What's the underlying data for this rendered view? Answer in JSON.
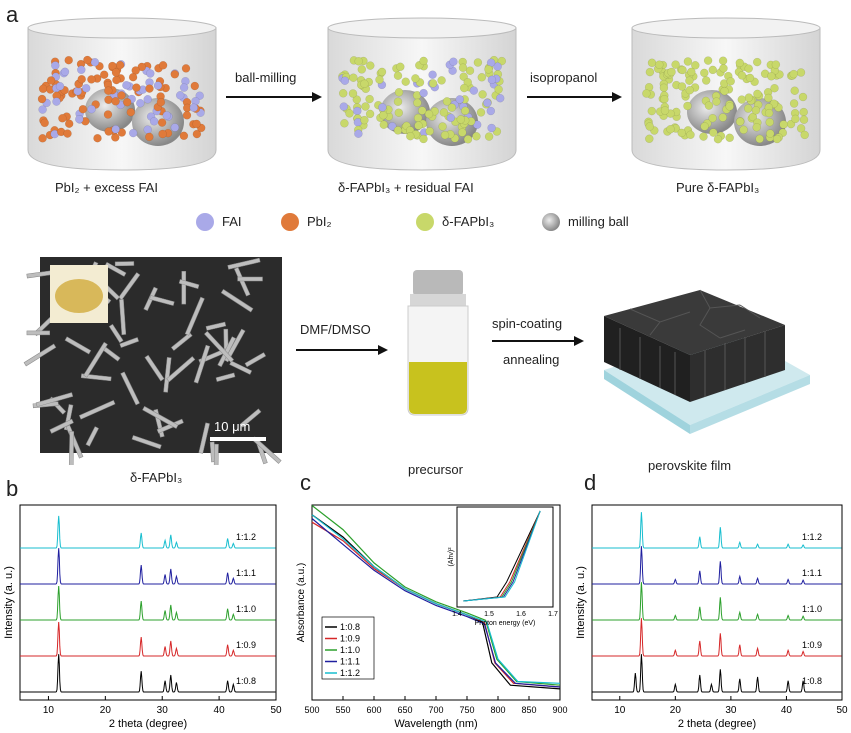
{
  "panel_labels": {
    "a": "a",
    "b": "b",
    "c": "c",
    "d": "d"
  },
  "top_row": {
    "jar1_caption": "PbI₂ + excess FAI",
    "arrow1_label": "ball-milling",
    "jar2_caption": "δ-FAPbI₃ + residual FAI",
    "arrow2_label": "isopropanol",
    "jar3_caption": "Pure δ-FAPbI₃"
  },
  "legend": {
    "fai": "FAI",
    "fai_color": "#a9a9e8",
    "pbi2": "PbI₂",
    "pbi2_color": "#e07a3a",
    "fapbi3": "δ-FAPbI₃",
    "fapbi3_color": "#c8d86a",
    "ball": "milling ball",
    "ball_color": "#9a9a9a"
  },
  "middle_row": {
    "sem_caption": "δ-FAPbI₃",
    "scale_bar": "10 μm",
    "arrow3_label": "DMF/DMSO",
    "vial_caption": "precursor",
    "arrow4_top": "spin-coating",
    "arrow4_bottom": "annealing",
    "film_caption": "perovskite film"
  },
  "chart_data": [
    {
      "panel": "b",
      "type": "line",
      "xlabel": "2 theta (degree)",
      "ylabel": "Intensity (a. u.)",
      "xlim": [
        5,
        50
      ],
      "x_ticks": [
        10,
        20,
        30,
        40,
        50
      ],
      "series": [
        {
          "name": "1:0.8",
          "color": "#000000",
          "peaks": [
            [
              11.8,
              1.0
            ],
            [
              26.3,
              0.55
            ],
            [
              30.5,
              0.3
            ],
            [
              31.5,
              0.45
            ],
            [
              32.5,
              0.25
            ],
            [
              41.5,
              0.3
            ],
            [
              42.5,
              0.2
            ]
          ]
        },
        {
          "name": "1:0.9",
          "color": "#d62728",
          "peaks": [
            [
              11.8,
              0.9
            ],
            [
              26.3,
              0.5
            ],
            [
              30.5,
              0.25
            ],
            [
              31.5,
              0.4
            ],
            [
              32.5,
              0.2
            ],
            [
              41.5,
              0.3
            ],
            [
              42.5,
              0.15
            ]
          ]
        },
        {
          "name": "1:1.0",
          "color": "#2ca02c",
          "peaks": [
            [
              11.8,
              0.9
            ],
            [
              26.3,
              0.5
            ],
            [
              30.5,
              0.25
            ],
            [
              31.5,
              0.4
            ],
            [
              32.5,
              0.2
            ],
            [
              41.5,
              0.3
            ],
            [
              42.5,
              0.15
            ]
          ]
        },
        {
          "name": "1:1.1",
          "color": "#1f1f9f",
          "peaks": [
            [
              11.8,
              0.95
            ],
            [
              26.3,
              0.5
            ],
            [
              30.5,
              0.25
            ],
            [
              31.5,
              0.4
            ],
            [
              32.5,
              0.2
            ],
            [
              41.5,
              0.3
            ],
            [
              42.5,
              0.15
            ]
          ]
        },
        {
          "name": "1:1.2",
          "color": "#17becf",
          "peaks": [
            [
              11.8,
              0.85
            ],
            [
              26.3,
              0.4
            ],
            [
              30.5,
              0.2
            ],
            [
              31.5,
              0.35
            ],
            [
              32.5,
              0.15
            ],
            [
              41.5,
              0.25
            ],
            [
              42.5,
              0.12
            ]
          ]
        }
      ]
    },
    {
      "panel": "c",
      "type": "line",
      "xlabel": "Wavelength (nm)",
      "ylabel": "Absorbance (a.u.)",
      "xlim": [
        500,
        900
      ],
      "x_ticks": [
        500,
        550,
        600,
        650,
        700,
        750,
        800,
        850,
        900
      ],
      "series": [
        {
          "name": "1:0.8",
          "color": "#000000",
          "points": [
            [
              500,
              1.0
            ],
            [
              550,
              0.88
            ],
            [
              600,
              0.72
            ],
            [
              650,
              0.6
            ],
            [
              700,
              0.52
            ],
            [
              750,
              0.46
            ],
            [
              775,
              0.42
            ],
            [
              790,
              0.2
            ],
            [
              820,
              0.08
            ],
            [
              900,
              0.06
            ]
          ]
        },
        {
          "name": "1:0.9",
          "color": "#d62728",
          "points": [
            [
              500,
              0.96
            ],
            [
              550,
              0.86
            ],
            [
              600,
              0.71
            ],
            [
              650,
              0.6
            ],
            [
              700,
              0.52
            ],
            [
              750,
              0.46
            ],
            [
              778,
              0.42
            ],
            [
              795,
              0.2
            ],
            [
              825,
              0.09
            ],
            [
              900,
              0.07
            ]
          ]
        },
        {
          "name": "1:1.0",
          "color": "#2ca02c",
          "points": [
            [
              500,
              1.05
            ],
            [
              550,
              0.92
            ],
            [
              600,
              0.74
            ],
            [
              650,
              0.61
            ],
            [
              700,
              0.53
            ],
            [
              750,
              0.47
            ],
            [
              780,
              0.43
            ],
            [
              798,
              0.22
            ],
            [
              830,
              0.1
            ],
            [
              900,
              0.08
            ]
          ]
        },
        {
          "name": "1:1.1",
          "color": "#1f1f9f",
          "points": [
            [
              500,
              0.98
            ],
            [
              550,
              0.84
            ],
            [
              600,
              0.7
            ],
            [
              650,
              0.59
            ],
            [
              700,
              0.51
            ],
            [
              750,
              0.45
            ],
            [
              778,
              0.41
            ],
            [
              796,
              0.2
            ],
            [
              828,
              0.09
            ],
            [
              900,
              0.07
            ]
          ]
        },
        {
          "name": "1:1.2",
          "color": "#17becf",
          "points": [
            [
              500,
              1.0
            ],
            [
              550,
              0.87
            ],
            [
              600,
              0.72
            ],
            [
              650,
              0.6
            ],
            [
              700,
              0.52
            ],
            [
              750,
              0.46
            ],
            [
              782,
              0.42
            ],
            [
              800,
              0.22
            ],
            [
              832,
              0.1
            ],
            [
              900,
              0.09
            ]
          ]
        }
      ],
      "inset": {
        "xlabel": "Photon energy (eV)",
        "ylabel": "(Ahν)²",
        "xlim": [
          1.4,
          1.7
        ],
        "x_ticks": [
          1.4,
          1.5,
          1.6,
          1.7
        ]
      }
    },
    {
      "panel": "d",
      "type": "line",
      "xlabel": "2 theta (degree)",
      "ylabel": "Intensity (a. u.)",
      "xlim": [
        5,
        50
      ],
      "x_ticks": [
        10,
        20,
        30,
        40,
        50
      ],
      "series": [
        {
          "name": "1:0.8",
          "color": "#000000",
          "peaks": [
            [
              12.8,
              0.5
            ],
            [
              13.9,
              1.0
            ],
            [
              20.0,
              0.2
            ],
            [
              24.4,
              0.45
            ],
            [
              26.5,
              0.2
            ],
            [
              28.1,
              0.6
            ],
            [
              31.6,
              0.35
            ],
            [
              34.8,
              0.4
            ],
            [
              40.3,
              0.3
            ],
            [
              43.0,
              0.3
            ]
          ]
        },
        {
          "name": "1:0.9",
          "color": "#d62728",
          "peaks": [
            [
              13.9,
              1.0
            ],
            [
              20.0,
              0.15
            ],
            [
              24.4,
              0.4
            ],
            [
              28.1,
              0.6
            ],
            [
              31.6,
              0.3
            ],
            [
              34.8,
              0.2
            ],
            [
              40.3,
              0.15
            ],
            [
              43.0,
              0.12
            ]
          ]
        },
        {
          "name": "1:1.0",
          "color": "#2ca02c",
          "peaks": [
            [
              13.9,
              1.0
            ],
            [
              20.0,
              0.12
            ],
            [
              24.4,
              0.35
            ],
            [
              28.1,
              0.6
            ],
            [
              31.6,
              0.2
            ],
            [
              34.8,
              0.15
            ],
            [
              40.3,
              0.12
            ],
            [
              43.0,
              0.1
            ]
          ]
        },
        {
          "name": "1:1.1",
          "color": "#1f1f9f",
          "peaks": [
            [
              13.9,
              1.0
            ],
            [
              20.0,
              0.12
            ],
            [
              24.4,
              0.35
            ],
            [
              28.1,
              0.6
            ],
            [
              31.6,
              0.2
            ],
            [
              34.8,
              0.15
            ],
            [
              40.3,
              0.12
            ],
            [
              43.0,
              0.1
            ]
          ]
        },
        {
          "name": "1:1.2",
          "color": "#17becf",
          "peaks": [
            [
              13.9,
              0.95
            ],
            [
              24.4,
              0.3
            ],
            [
              28.1,
              0.55
            ],
            [
              31.6,
              0.15
            ],
            [
              34.8,
              0.1
            ],
            [
              40.3,
              0.1
            ],
            [
              43.0,
              0.08
            ]
          ]
        }
      ]
    }
  ]
}
